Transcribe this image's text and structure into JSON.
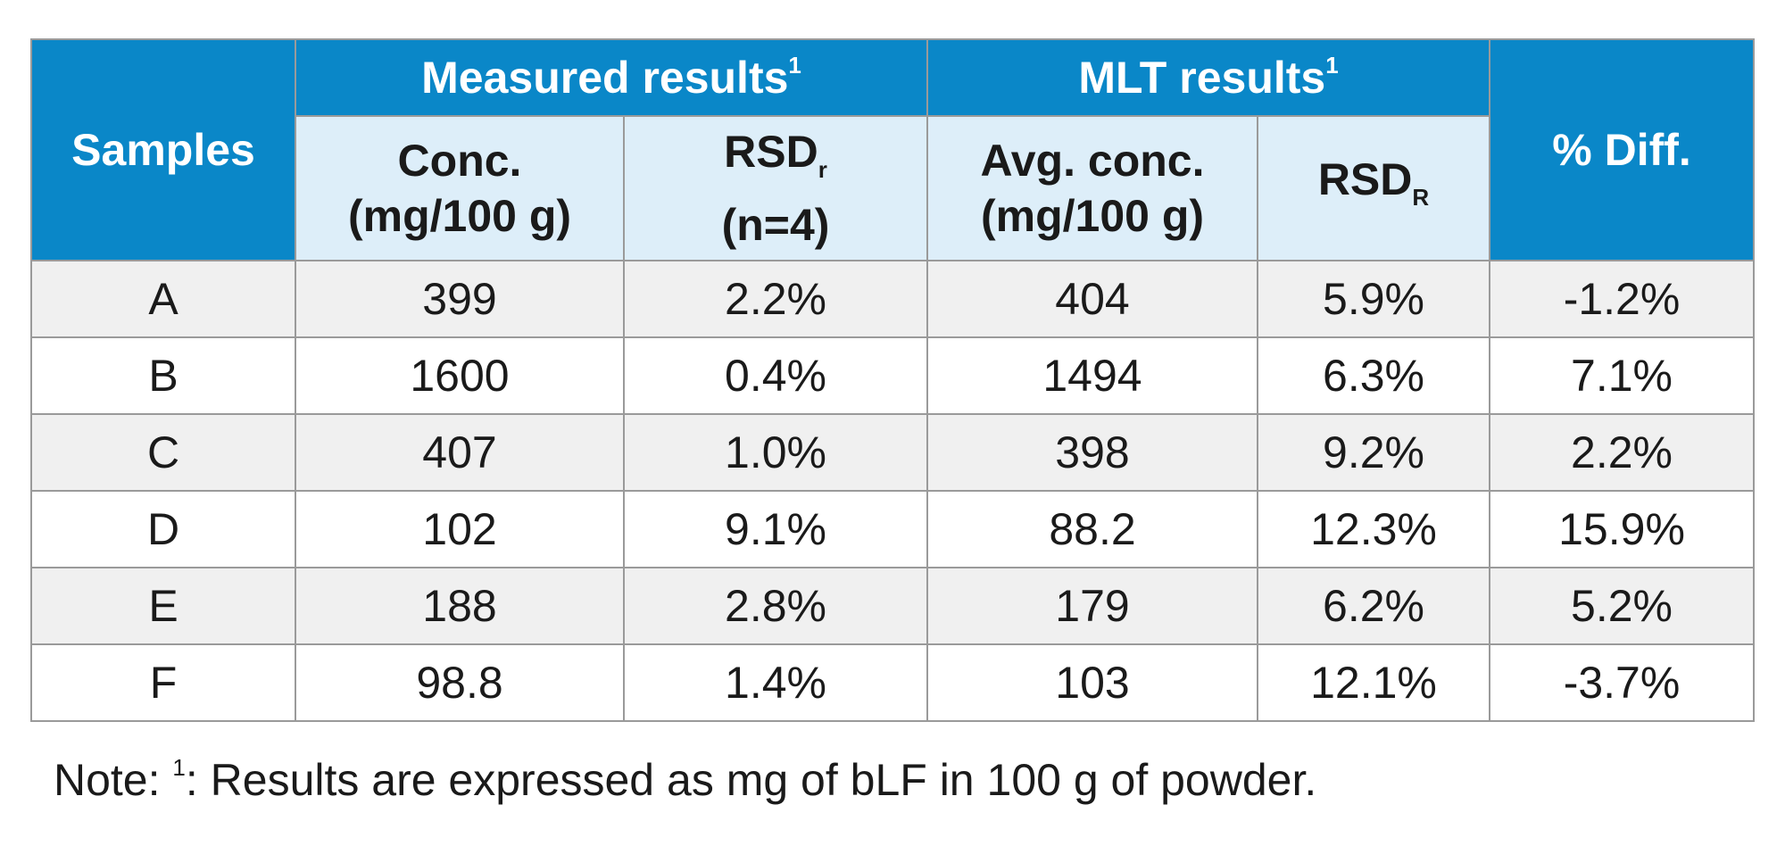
{
  "table": {
    "header_group_1": "Measured results",
    "header_group_2": "MLT results",
    "footnote_marker": "1",
    "columns": {
      "samples": "Samples",
      "conc_line1": "Conc.",
      "conc_line2": "(mg/100 g)",
      "rsdr_base": "RSD",
      "rsdr_sub": "r",
      "rsdr_line2": "(n=4)",
      "avg_conc_line1": "Avg. conc.",
      "avg_conc_line2": "(mg/100 g)",
      "rsdR_base": "RSD",
      "rsdR_sub": "R",
      "diff": "% Diff."
    },
    "rows": [
      {
        "sample": "A",
        "conc": "399",
        "rsd_r": "2.2%",
        "avg_conc": "404",
        "rsd_R": "5.9%",
        "diff": "-1.2%"
      },
      {
        "sample": "B",
        "conc": "1600",
        "rsd_r": "0.4%",
        "avg_conc": "1494",
        "rsd_R": "6.3%",
        "diff": "7.1%"
      },
      {
        "sample": "C",
        "conc": "407",
        "rsd_r": "1.0%",
        "avg_conc": "398",
        "rsd_R": "9.2%",
        "diff": "2.2%"
      },
      {
        "sample": "D",
        "conc": "102",
        "rsd_r": "9.1%",
        "avg_conc": "88.2",
        "rsd_R": "12.3%",
        "diff": "15.9%"
      },
      {
        "sample": "E",
        "conc": "188",
        "rsd_r": "2.8%",
        "avg_conc": "179",
        "rsd_R": "6.2%",
        "diff": "5.2%"
      },
      {
        "sample": "F",
        "conc": "98.8",
        "rsd_r": "1.4%",
        "avg_conc": "103",
        "rsd_R": "12.1%",
        "diff": "-3.7%"
      }
    ]
  },
  "note": {
    "prefix": "Note: ",
    "marker": "1",
    "text": ": Results are expressed as mg of bLF in 100 g of powder."
  },
  "colors": {
    "header_blue": "#0a87c8",
    "subheader_light_blue": "#ddeef9",
    "row_shade": "#f0f0f0",
    "border": "#9a9a9a"
  }
}
